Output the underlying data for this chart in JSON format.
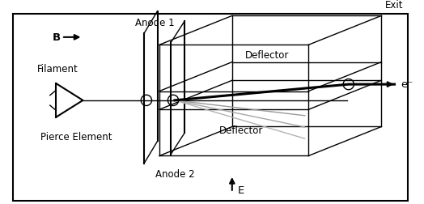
{
  "line_color": "#000000",
  "labels": {
    "anode1": "Anode 1",
    "anode2": "Anode 2",
    "deflector_top": "Deflector",
    "deflector_bottom": "Deflector",
    "filament": "Filament",
    "pierce": "Pierce Element",
    "exit": "Exit",
    "electron": "e⁻",
    "B": "B",
    "E": "E"
  },
  "fig_w": 5.24,
  "fig_h": 2.53,
  "dpi": 100
}
